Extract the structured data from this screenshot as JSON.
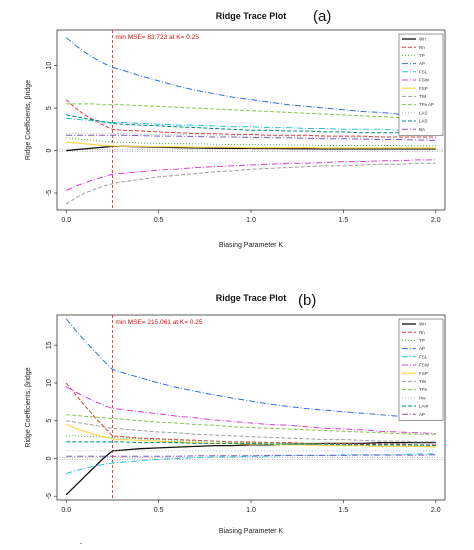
{
  "chart_data": [
    {
      "type": "line",
      "panel": "(a)",
      "title": "Ridge Trace Plot",
      "xlabel": "Biasing Parameter K",
      "ylabel": "Ridge Coefficients, βridge",
      "xlim": [
        -0.05,
        2.05
      ],
      "ylim": [
        -7,
        14.2
      ],
      "xticks": [
        0.0,
        0.5,
        1.0,
        1.5,
        2.0
      ],
      "yticks": [
        -5,
        0,
        5,
        10
      ],
      "grid": false,
      "legend_placement": "right",
      "annotation": {
        "text": "min MSE= 83.723 at K= 0.25",
        "k": 0.25
      },
      "x": [
        0,
        0.05,
        0.1,
        0.15,
        0.2,
        0.25,
        0.3,
        0.4,
        0.5,
        0.6,
        0.7,
        0.8,
        0.9,
        1.0,
        1.1,
        1.2,
        1.3,
        1.4,
        1.5,
        1.6,
        1.7,
        1.8,
        1.9,
        2.0
      ],
      "series": [
        {
          "name": "Wn",
          "color": "#111111",
          "dash": "",
          "width": 1.3,
          "values": [
            0.0,
            0.1,
            0.2,
            0.3,
            0.4,
            0.5,
            0.5,
            0.45,
            0.4,
            0.35,
            0.3,
            0.28,
            0.26,
            0.25,
            0.24,
            0.23,
            0.22,
            0.2,
            0.2,
            0.2,
            0.2,
            0.2,
            0.2,
            0.2
          ]
        },
        {
          "name": "Rn",
          "color": "#e23b3b",
          "dash": "4,2",
          "width": 1,
          "values": [
            6.0,
            5.0,
            4.2,
            3.6,
            3.0,
            2.5,
            2.4,
            2.3,
            2.2,
            2.1,
            2.0,
            2.0,
            1.9,
            1.9,
            1.8,
            1.8,
            1.8,
            1.7,
            1.7,
            1.7,
            1.6,
            1.6,
            1.6,
            1.6
          ]
        },
        {
          "name": "TP",
          "color": "#4caf50",
          "dash": "1,2",
          "width": 1,
          "values": [
            1.5,
            1.4,
            1.3,
            1.2,
            1.1,
            1.0,
            1.0,
            0.9,
            0.85,
            0.8,
            0.8,
            0.75,
            0.7,
            0.7,
            0.7,
            0.65,
            0.65,
            0.6,
            0.6,
            0.6,
            0.6,
            0.6,
            0.55,
            0.55
          ]
        },
        {
          "name": "AP",
          "color": "#2f6fd6",
          "dash": "6,2,1,2",
          "width": 1,
          "values": [
            13.3,
            12.4,
            11.6,
            10.9,
            10.3,
            9.8,
            9.5,
            8.8,
            8.2,
            7.6,
            7.1,
            6.7,
            6.3,
            6.0,
            5.7,
            5.4,
            5.2,
            5.0,
            4.8,
            4.6,
            4.5,
            4.3,
            4.2,
            4.1
          ]
        },
        {
          "name": "FSL",
          "color": "#26c6da",
          "dash": "6,2,1,2",
          "width": 1,
          "values": [
            3.8,
            3.7,
            3.6,
            3.5,
            3.4,
            3.3,
            3.3,
            3.2,
            3.1,
            3.0,
            3.0,
            2.9,
            2.8,
            2.8,
            2.7,
            2.7,
            2.6,
            2.6,
            2.5,
            2.5,
            2.5,
            2.4,
            2.4,
            2.4
          ]
        },
        {
          "name": "FSW",
          "color": "#d63fd6",
          "dash": "6,2,1,2",
          "width": 1,
          "values": [
            -4.7,
            -4.2,
            -3.8,
            -3.4,
            -3.1,
            -2.8,
            -2.7,
            -2.5,
            -2.3,
            -2.2,
            -2.0,
            -1.9,
            -1.8,
            -1.7,
            -1.6,
            -1.5,
            -1.5,
            -1.4,
            -1.3,
            -1.3,
            -1.2,
            -1.2,
            -1.1,
            -1.1
          ]
        },
        {
          "name": "FSP",
          "color": "#ffd54f",
          "dash": "",
          "width": 1.2,
          "values": [
            1.0,
            0.9,
            0.8,
            0.7,
            0.6,
            0.55,
            0.5,
            0.5,
            0.45,
            0.45,
            0.4,
            0.4,
            0.4,
            0.35,
            0.35,
            0.35,
            0.35,
            0.3,
            0.3,
            0.3,
            0.3,
            0.3,
            0.3,
            0.3
          ]
        },
        {
          "name": "TW",
          "color": "#9e9e9e",
          "dash": "4,2",
          "width": 1,
          "values": [
            -6.3,
            -5.6,
            -5.0,
            -4.6,
            -4.2,
            -3.9,
            -3.7,
            -3.4,
            -3.1,
            -2.9,
            -2.7,
            -2.5,
            -2.4,
            -2.2,
            -2.1,
            -2.0,
            -1.9,
            -1.8,
            -1.8,
            -1.7,
            -1.6,
            -1.6,
            -1.5,
            -1.5
          ]
        },
        {
          "name": "TFe AP",
          "color": "#8bc34a",
          "dash": "4,2",
          "width": 1,
          "values": [
            5.5,
            5.5,
            5.5,
            5.5,
            5.4,
            5.4,
            5.4,
            5.3,
            5.2,
            5.1,
            5.0,
            4.9,
            4.8,
            4.7,
            4.6,
            4.5,
            4.4,
            4.3,
            4.2,
            4.1,
            4.0,
            3.9,
            3.8,
            3.7
          ]
        },
        {
          "name": "LAS",
          "color": "#b0bec5",
          "dash": "1,2",
          "width": 1,
          "values": [
            2.0,
            2.0,
            2.0,
            2.0,
            2.0,
            2.0,
            2.0,
            1.9,
            1.9,
            1.9,
            1.8,
            1.8,
            1.8,
            1.7,
            1.7,
            1.7,
            1.6,
            1.6,
            1.6,
            1.5,
            1.5,
            1.5,
            1.5,
            1.4
          ]
        },
        {
          "name": "LAS",
          "color": "#00897b",
          "dash": "4,2",
          "width": 1,
          "values": [
            4.2,
            4.0,
            3.8,
            3.6,
            3.4,
            3.2,
            3.1,
            3.0,
            2.9,
            2.8,
            2.7,
            2.6,
            2.5,
            2.4,
            2.4,
            2.3,
            2.3,
            2.2,
            2.2,
            2.1,
            2.1,
            2.1,
            2.0,
            2.0
          ]
        },
        {
          "name": "BA",
          "color": "#7e57c2",
          "dash": "6,2,1,2",
          "width": 1,
          "values": [
            1.8,
            1.8,
            1.8,
            1.8,
            1.8,
            1.8,
            1.8,
            1.75,
            1.7,
            1.7,
            1.65,
            1.6,
            1.6,
            1.55,
            1.5,
            1.5,
            1.45,
            1.4,
            1.4,
            1.35,
            1.3,
            1.3,
            1.25,
            1.2
          ]
        }
      ]
    },
    {
      "type": "line",
      "panel": "(b)",
      "title": "Ridge Trace Plot",
      "xlabel": "Biasing Parameter K",
      "ylabel": "Ridge Coefficients, βridge",
      "xlim": [
        -0.05,
        2.05
      ],
      "ylim": [
        -5.5,
        19
      ],
      "xticks": [
        0.0,
        0.5,
        1.0,
        1.5,
        2.0
      ],
      "yticks": [
        -5,
        0,
        5,
        10,
        15
      ],
      "grid": false,
      "legend_placement": "right",
      "annotation": {
        "text": "min MSE= 215.061 at K= 0.25",
        "k": 0.25
      },
      "x": [
        0,
        0.05,
        0.1,
        0.15,
        0.2,
        0.25,
        0.3,
        0.4,
        0.5,
        0.6,
        0.7,
        0.8,
        0.9,
        1.0,
        1.1,
        1.2,
        1.3,
        1.4,
        1.5,
        1.6,
        1.7,
        1.8,
        1.9,
        2.0
      ],
      "series": [
        {
          "name": "Wn",
          "color": "#111111",
          "dash": "",
          "width": 1.3,
          "values": [
            -4.8,
            -3.6,
            -2.4,
            -1.2,
            0.0,
            1.0,
            1.1,
            1.3,
            1.4,
            1.5,
            1.6,
            1.7,
            1.7,
            1.8,
            1.8,
            1.9,
            1.9,
            2.0,
            2.0,
            2.0,
            2.1,
            2.1,
            2.1,
            2.1
          ]
        },
        {
          "name": "Rn",
          "color": "#e23b3b",
          "dash": "4,2",
          "width": 1,
          "values": [
            10.0,
            8.5,
            7.0,
            5.6,
            4.3,
            3.0,
            2.9,
            2.7,
            2.6,
            2.5,
            2.4,
            2.3,
            2.2,
            2.2,
            2.1,
            2.1,
            2.0,
            2.0,
            2.0,
            1.9,
            1.9,
            1.9,
            1.8,
            1.8
          ]
        },
        {
          "name": "TP",
          "color": "#4caf50",
          "dash": "1,2",
          "width": 1,
          "values": [
            3.0,
            3.0,
            2.9,
            2.9,
            2.8,
            2.8,
            2.7,
            2.6,
            2.5,
            2.4,
            2.3,
            2.3,
            2.2,
            2.1,
            2.1,
            2.0,
            2.0,
            1.9,
            1.9,
            1.8,
            1.8,
            1.8,
            1.7,
            1.7
          ]
        },
        {
          "name": "AP",
          "color": "#2f6fd6",
          "dash": "6,2,1,2",
          "width": 1,
          "values": [
            18.5,
            17.0,
            15.6,
            14.3,
            13.0,
            11.8,
            11.4,
            10.7,
            10.0,
            9.4,
            8.9,
            8.4,
            8.0,
            7.6,
            7.2,
            6.9,
            6.6,
            6.4,
            6.2,
            6.0,
            5.8,
            5.6,
            5.5,
            5.3
          ]
        },
        {
          "name": "FSL",
          "color": "#26c6da",
          "dash": "6,2,1,2",
          "width": 1,
          "values": [
            -2.0,
            -1.6,
            -1.3,
            -1.0,
            -0.8,
            -0.6,
            -0.5,
            -0.3,
            -0.1,
            0.0,
            0.1,
            0.2,
            0.2,
            0.3,
            0.3,
            0.4,
            0.4,
            0.4,
            0.5,
            0.5,
            0.5,
            0.5,
            0.6,
            0.6
          ]
        },
        {
          "name": "FSW",
          "color": "#d63fd6",
          "dash": "6,2,1,2",
          "width": 1,
          "values": [
            9.5,
            8.8,
            8.2,
            7.6,
            7.1,
            6.6,
            6.5,
            6.2,
            5.9,
            5.6,
            5.4,
            5.1,
            4.9,
            4.7,
            4.5,
            4.4,
            4.2,
            4.0,
            3.9,
            3.8,
            3.6,
            3.5,
            3.4,
            3.3
          ]
        },
        {
          "name": "FSP",
          "color": "#ffd54f",
          "dash": "",
          "width": 1.2,
          "values": [
            4.5,
            4.0,
            3.6,
            3.2,
            2.9,
            2.6,
            2.5,
            2.4,
            2.3,
            2.2,
            2.1,
            2.0,
            2.0,
            1.9,
            1.9,
            1.8,
            1.8,
            1.7,
            1.7,
            1.7,
            1.6,
            1.6,
            1.6,
            1.5
          ]
        },
        {
          "name": "TW",
          "color": "#9e9e9e",
          "dash": "4,2",
          "width": 1,
          "values": [
            5.0,
            4.8,
            4.6,
            4.4,
            4.2,
            4.0,
            3.9,
            3.7,
            3.5,
            3.4,
            3.2,
            3.1,
            3.0,
            2.9,
            2.8,
            2.7,
            2.6,
            2.5,
            2.5,
            2.4,
            2.3,
            2.3,
            2.2,
            2.2
          ]
        },
        {
          "name": "TFe",
          "color": "#8bc34a",
          "dash": "4,2",
          "width": 1,
          "values": [
            5.8,
            5.7,
            5.6,
            5.5,
            5.4,
            5.3,
            5.2,
            5.0,
            4.8,
            4.7,
            4.5,
            4.4,
            4.2,
            4.1,
            4.0,
            3.9,
            3.8,
            3.7,
            3.6,
            3.5,
            3.4,
            3.3,
            3.2,
            3.2
          ]
        },
        {
          "name": "Hw",
          "color": "#b0bec5",
          "dash": "1,2",
          "width": 1,
          "values": [
            1.0,
            1.0,
            1.0,
            1.0,
            1.0,
            1.0,
            1.0,
            1.0,
            1.0,
            1.0,
            1.0,
            1.0,
            1.0,
            1.0,
            1.0,
            1.0,
            1.0,
            1.0,
            1.0,
            1.0,
            1.0,
            1.0,
            1.0,
            1.0
          ]
        },
        {
          "name": "LAm",
          "color": "#00897b",
          "dash": "4,2",
          "width": 1,
          "values": [
            2.2,
            2.2,
            2.2,
            2.2,
            2.2,
            2.2,
            2.2,
            2.1,
            2.1,
            2.1,
            2.0,
            2.0,
            2.0,
            2.0,
            1.9,
            1.9,
            1.9,
            1.9,
            1.8,
            1.8,
            1.8,
            1.8,
            1.8,
            1.7
          ]
        },
        {
          "name": "AP",
          "color": "#7e57c2",
          "dash": "6,2,1,2",
          "width": 1,
          "values": [
            0.3,
            0.3,
            0.3,
            0.3,
            0.3,
            0.3,
            0.3,
            0.3,
            0.3,
            0.3,
            0.35,
            0.35,
            0.35,
            0.35,
            0.4,
            0.4,
            0.4,
            0.4,
            0.4,
            0.45,
            0.45,
            0.45,
            0.45,
            0.5
          ]
        }
      ]
    }
  ],
  "footer_mark": "̃"
}
